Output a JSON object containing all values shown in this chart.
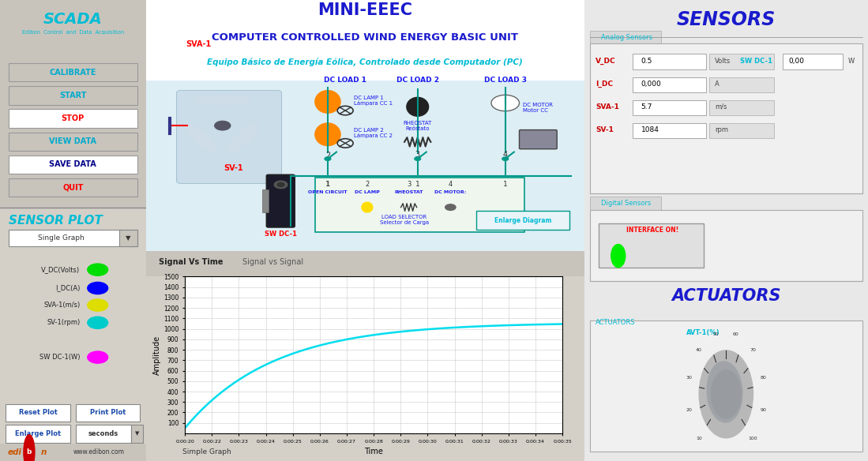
{
  "title_main": "MINI-EEEC",
  "title_sub1": "COMPUTER CONTROLLED WIND ENERGY BASIC UNIT",
  "title_sub2": "Equipo Básico de Energía Eólica, Controlado desde Computador (PC)",
  "scada_title": "SCADA",
  "scada_sub": "Edibon  Control  and  Data  Acquisition",
  "sensor_plot_title": "SENSOR PLOT",
  "sensors_title": "SENSORS",
  "actuators_title": "ACTUATORS",
  "bg_color": "#d4d0c8",
  "left_panel_bg": "#d0ccc4",
  "diagram_bg": "#ddeef5",
  "white": "#ffffff",
  "cyan_color": "#00bcd4",
  "blue_dark": "#1a1acd",
  "buttons": [
    {
      "label": "CALIBRATE",
      "color": "#00aacc",
      "bg": "#c8c4bc"
    },
    {
      "label": "START",
      "color": "#00aacc",
      "bg": "#c8c4bc"
    },
    {
      "label": "STOP",
      "color": "#ff0000",
      "bg": "#ffffff"
    },
    {
      "label": "VIEW DATA",
      "color": "#00aacc",
      "bg": "#c8c4bc"
    },
    {
      "label": "SAVE DATA",
      "color": "#000088",
      "bg": "#ffffff"
    },
    {
      "label": "QUIT",
      "color": "#ff0000",
      "bg": "#c8c4bc"
    }
  ],
  "sensor_labels": [
    {
      "text": "V_DC(Volts)",
      "color": "#00dd00"
    },
    {
      "text": "I_DC(A)",
      "color": "#0000ff"
    },
    {
      "text": "SVA-1(m/s)",
      "color": "#dddd00"
    },
    {
      "text": "SV-1(rpm)",
      "color": "#00cccc"
    }
  ],
  "sensor_label2": {
    "text": "SW DC-1(W)",
    "color": "#ff00ff"
  },
  "analog_sensors": [
    {
      "name": "V_DC",
      "value": "0.5",
      "unit": "Volts"
    },
    {
      "name": "I_DC",
      "value": "0,000",
      "unit": "A"
    },
    {
      "name": "SVA-1",
      "value": "5.7",
      "unit": "m/s"
    },
    {
      "name": "SV-1",
      "value": "1084",
      "unit": "rpm"
    }
  ],
  "sw_dc_sensor": {
    "name": "SW DC-1",
    "value": "0,00",
    "unit": "W"
  },
  "plot_xlabel": "Time",
  "plot_ylabel": "Amplitude",
  "plot_line_color": "#00ddee",
  "plot_grid_color": "#cccccc",
  "time_labels": [
    "0:00:20",
    "0:00:22",
    "0:00:23",
    "0:00:24",
    "0:00:25",
    "0:00:26",
    "0:00:27",
    "0:00:28",
    "0:00:29",
    "0:00:30",
    "0:00:31",
    "0:00:32",
    "0:00:33",
    "0:00:34",
    "0:00:35"
  ],
  "ylim": [
    0,
    1500
  ],
  "yticks": [
    100,
    200,
    300,
    400,
    500,
    600,
    700,
    800,
    900,
    1000,
    1100,
    1200,
    1300,
    1400,
    1500
  ],
  "signal_tab": "Signal Vs Time",
  "signal_tab2": "Signal vs Signal",
  "dc_loads": [
    "DC LOAD 1",
    "DC LOAD 2",
    "DC LOAD 3"
  ],
  "load_selector_labels": [
    "OPEN CIRCUIT",
    "DC LAMP",
    "RHEOSTAT",
    "DC MOTOR:"
  ],
  "load_selector_sub": "LOAD SELECTOR\nSelector de Carga",
  "teal": "#009988"
}
